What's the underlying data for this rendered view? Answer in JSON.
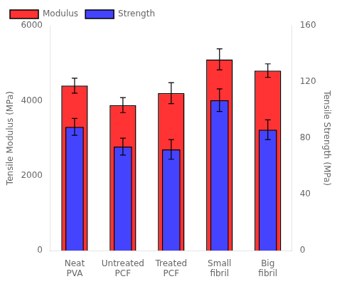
{
  "chart_data": {
    "type": "bar",
    "categories": [
      "Neat\nPVA",
      "Untreated\nPCF",
      "Treated\nPCF",
      "Small\nfibril",
      "Big\nfibril"
    ],
    "series": [
      {
        "name": "Modulus",
        "color": "#FF3333",
        "values": [
          4400,
          3880,
          4200,
          5100,
          4800
        ],
        "errors": [
          200,
          200,
          280,
          280,
          180
        ]
      },
      {
        "name": "Strength",
        "color": "#4444FF",
        "axis": "y2",
        "values": [
          88,
          74,
          72,
          107,
          86
        ],
        "errors": [
          6,
          6,
          7,
          8,
          7
        ]
      }
    ],
    "ylabel": "Tensile Modulus (MPa)",
    "y2label": "Tensile Strength (MPa)",
    "ylim": [
      0,
      6000
    ],
    "yticks": [
      0,
      2000,
      4000,
      6000
    ],
    "y2lim": [
      0,
      160
    ],
    "y2ticks": [
      0,
      40,
      80,
      120,
      160
    ],
    "grid": false,
    "legend": "upper left"
  }
}
